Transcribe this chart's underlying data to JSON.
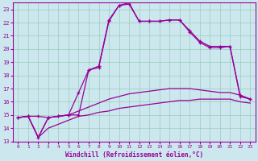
{
  "xlabel": "Windchill (Refroidissement éolien,°C)",
  "bg_color": "#cce8ee",
  "grid_color": "#99ccbb",
  "line_color": "#990099",
  "xlim": [
    -0.5,
    23.5
  ],
  "ylim": [
    13,
    23.5
  ],
  "yticks": [
    13,
    14,
    15,
    16,
    17,
    18,
    19,
    20,
    21,
    22,
    23
  ],
  "xticks": [
    0,
    1,
    2,
    3,
    4,
    5,
    6,
    7,
    8,
    9,
    10,
    11,
    12,
    13,
    14,
    15,
    16,
    17,
    18,
    19,
    20,
    21,
    22,
    23
  ],
  "line1_x": [
    0,
    1,
    2,
    3,
    4,
    5,
    6,
    7,
    8,
    9,
    10,
    11,
    12,
    13,
    14,
    15,
    16,
    17,
    18,
    19,
    20,
    21,
    22,
    23
  ],
  "line1_y": [
    14.8,
    14.9,
    14.9,
    14.8,
    14.9,
    15.0,
    15.0,
    18.4,
    18.6,
    22.1,
    23.3,
    23.4,
    22.1,
    22.1,
    22.1,
    22.2,
    22.2,
    21.3,
    20.5,
    20.1,
    20.1,
    20.2,
    16.4,
    16.2
  ],
  "line2_x": [
    0,
    1,
    2,
    3,
    4,
    5,
    6,
    7,
    8,
    9,
    10,
    11,
    12,
    13,
    14,
    15,
    16,
    17,
    18,
    19,
    20,
    21,
    22,
    23
  ],
  "line2_y": [
    14.8,
    14.9,
    13.3,
    14.8,
    14.9,
    15.0,
    16.7,
    18.4,
    18.7,
    22.2,
    23.3,
    23.5,
    22.1,
    22.1,
    22.1,
    22.2,
    22.2,
    21.4,
    20.6,
    20.2,
    20.2,
    20.2,
    16.5,
    16.2
  ],
  "line3_x": [
    0,
    1,
    2,
    3,
    4,
    5,
    6,
    7,
    8,
    9,
    10,
    11,
    12,
    13,
    14,
    15,
    16,
    17,
    18,
    19,
    20,
    21,
    22,
    23
  ],
  "line3_y": [
    14.8,
    14.9,
    13.3,
    14.8,
    14.9,
    15.0,
    15.3,
    15.6,
    15.9,
    16.2,
    16.4,
    16.6,
    16.7,
    16.8,
    16.9,
    17.0,
    17.0,
    17.0,
    16.9,
    16.8,
    16.7,
    16.7,
    16.5,
    16.2
  ],
  "line4_x": [
    0,
    1,
    2,
    3,
    4,
    5,
    6,
    7,
    8,
    9,
    10,
    11,
    12,
    13,
    14,
    15,
    16,
    17,
    18,
    19,
    20,
    21,
    22,
    23
  ],
  "line4_y": [
    14.8,
    14.9,
    13.3,
    14.0,
    14.3,
    14.6,
    14.9,
    15.0,
    15.2,
    15.3,
    15.5,
    15.6,
    15.7,
    15.8,
    15.9,
    16.0,
    16.1,
    16.1,
    16.2,
    16.2,
    16.2,
    16.2,
    16.0,
    15.9
  ]
}
